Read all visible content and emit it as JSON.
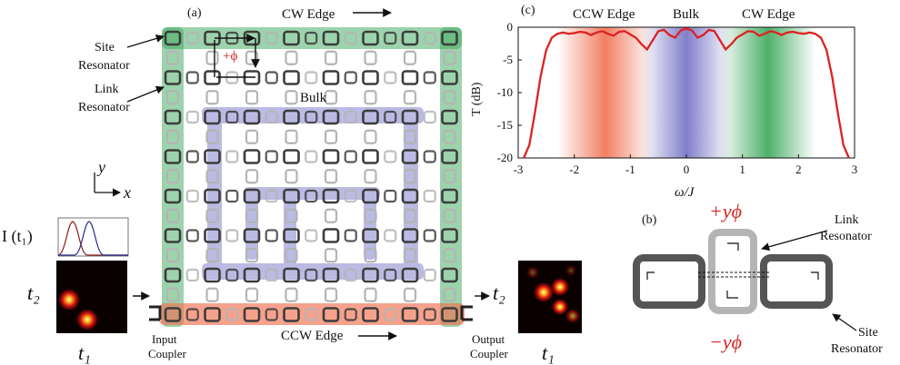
{
  "labels": {
    "a": "(a)",
    "b": "(b)",
    "c": "(c)",
    "cw_edge_top": "CW Edge",
    "ccw_edge_bottom": "CCW Edge",
    "bulk": "Bulk",
    "site_line1": "Site",
    "site_line2": "Resonator",
    "link_line1": "Link",
    "link_line2": "Resonator",
    "phase": "+ϕ",
    "axis_y": "y",
    "axis_x": "x",
    "i_t1": "I (t₁)",
    "t2": "t₂",
    "t1": "t₁",
    "input_coupler_1": "Input",
    "input_coupler_2": "Coupler",
    "output_coupler_1": "Output",
    "output_coupler_2": "Coupler",
    "b_plus": "+yϕ",
    "b_minus": "−yϕ",
    "b_link_1": "Link",
    "b_link_2": "Resonator",
    "b_site_1": "Site",
    "b_site_2": "Resonator"
  },
  "colors": {
    "edge_cw": "#3aa85a",
    "edge_ccw": "#f07050",
    "bulk": "#6a68c0",
    "site": "#3c3c3c",
    "link": "#b4b4b4",
    "curve": "#dd2222"
  },
  "chart_data": {
    "type": "line",
    "title": "",
    "xlabel": "ω/J",
    "ylabel": "T (dB)",
    "xlim": [
      -3,
      3
    ],
    "ylim": [
      -20,
      0
    ],
    "xticks": [
      -3,
      -2,
      -1,
      0,
      1,
      2,
      3
    ],
    "yticks": [
      0,
      -5,
      -10,
      -15,
      -20
    ],
    "band_labels": [
      "CCW Edge",
      "Bulk",
      "CW Edge"
    ],
    "bands": [
      {
        "name": "CCW Edge",
        "from": -2.3,
        "to": -0.6,
        "color": "#f07050"
      },
      {
        "name": "Bulk",
        "from": -0.8,
        "to": 0.8,
        "color": "#6a68c0"
      },
      {
        "name": "CW Edge",
        "from": 0.6,
        "to": 2.3,
        "color": "#3aa85a"
      }
    ],
    "series": [
      {
        "x": [
          -2.9,
          -2.8,
          -2.7,
          -2.6,
          -2.5,
          -2.4,
          -2.3,
          -2.2,
          -2.1,
          -2.0,
          -1.9,
          -1.8,
          -1.7,
          -1.6,
          -1.5,
          -1.4,
          -1.3,
          -1.2,
          -1.1,
          -1.0,
          -0.9,
          -0.8,
          -0.7,
          -0.6,
          -0.5,
          -0.4,
          -0.3,
          -0.2,
          -0.1,
          0.0,
          0.1,
          0.2,
          0.3,
          0.4,
          0.5,
          0.6,
          0.7,
          0.8,
          0.9,
          1.0,
          1.1,
          1.2,
          1.3,
          1.4,
          1.5,
          1.6,
          1.7,
          1.8,
          1.9,
          2.0,
          2.1,
          2.2,
          2.3,
          2.4,
          2.5,
          2.6,
          2.7,
          2.8,
          2.9
        ],
        "y": [
          -20,
          -18,
          -13,
          -7.5,
          -3.5,
          -1.6,
          -1.0,
          -0.8,
          -1.0,
          -0.9,
          -0.7,
          -0.8,
          -1.2,
          -0.8,
          -0.6,
          -1.0,
          -1.3,
          -0.7,
          -0.6,
          -1.1,
          -1.6,
          -2.6,
          -3.4,
          -2.0,
          -0.6,
          -0.4,
          -1.2,
          -1.6,
          -0.5,
          -0.2,
          -0.5,
          -1.6,
          -1.2,
          -0.4,
          -0.6,
          -2.0,
          -3.4,
          -2.6,
          -1.6,
          -1.1,
          -0.6,
          -0.7,
          -1.3,
          -1.0,
          -0.6,
          -0.8,
          -1.2,
          -0.8,
          -0.7,
          -0.9,
          -1.0,
          -0.8,
          -1.0,
          -1.6,
          -3.5,
          -7.5,
          -13,
          -18,
          -20
        ]
      }
    ]
  }
}
